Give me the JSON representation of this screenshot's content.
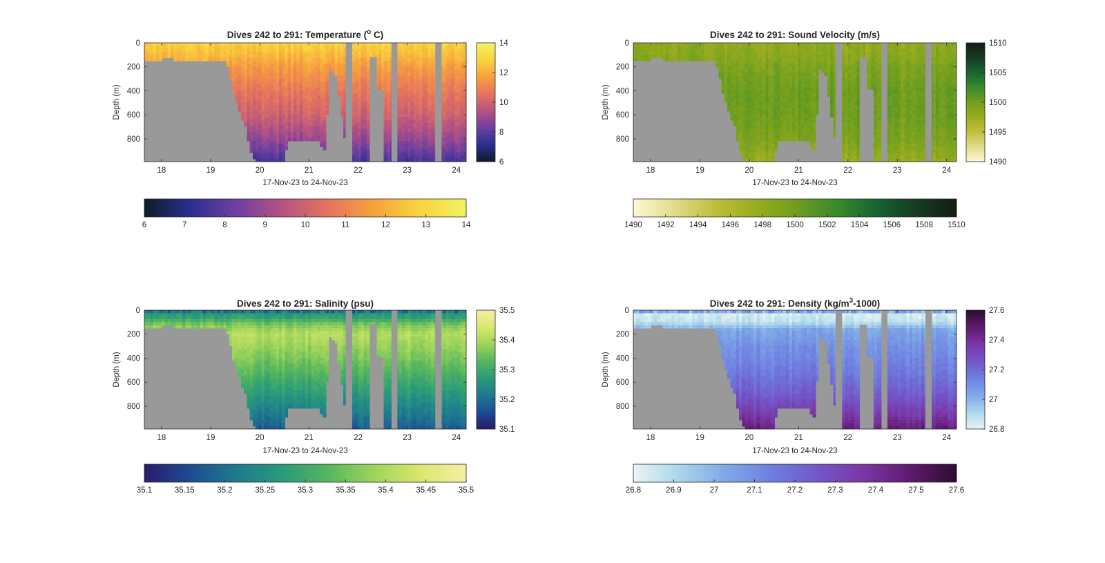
{
  "figure": {
    "background": "#ffffff",
    "land_color": "#999999",
    "panel_order": [
      "temperature",
      "sound_velocity",
      "salinity",
      "density"
    ]
  },
  "chart_data": [
    {
      "id": "temperature",
      "type": "heatmap",
      "title": "Dives 242 to 291: Temperature (",
      "title_super": "o",
      "title_suffix": " C)",
      "xlabel": "17-Nov-23 to 24-Nov-23",
      "ylabel": "Depth (m)",
      "xlim": [
        17.65,
        24.2
      ],
      "x_ticks": [
        18,
        19,
        20,
        21,
        22,
        23,
        24
      ],
      "x_tick_labels": [
        "18",
        "19",
        "20",
        "21",
        "22",
        "23",
        "24"
      ],
      "ylim": [
        0,
        990
      ],
      "y_reversed": true,
      "y_ticks": [
        0,
        200,
        400,
        600,
        800
      ],
      "y_tick_labels": [
        "0",
        "200",
        "400",
        "600",
        "800"
      ],
      "clim": [
        6,
        14
      ],
      "colormap": [
        "#0c1b2a",
        "#2a2f8f",
        "#6f3fa0",
        "#b55383",
        "#e6735e",
        "#f7a23d",
        "#f9d43f",
        "#f3f264"
      ],
      "colorbar_ticks": [
        6,
        8,
        10,
        12,
        14
      ],
      "colorbar_tick_labels": [
        "6",
        "8",
        "10",
        "12",
        "14"
      ],
      "hbar_ticks": [
        6,
        7,
        8,
        9,
        10,
        11,
        12,
        13,
        14
      ],
      "hbar_tick_labels": [
        "6",
        "7",
        "8",
        "9",
        "10",
        "11",
        "12",
        "13",
        "14"
      ],
      "profile": {
        "depth": [
          0,
          100,
          200,
          400,
          600,
          800,
          990
        ],
        "values": [
          12.8,
          12.3,
          11.6,
          10.7,
          10.0,
          8.9,
          7.6
        ]
      },
      "top_noise": 0
    },
    {
      "id": "sound_velocity",
      "type": "heatmap",
      "title": "Dives 242 to 291: Sound Velocity (m/s)",
      "title_super": "",
      "title_suffix": "",
      "xlabel": "17-Nov-23 to 24-Nov-23",
      "ylabel": "Depth (m)",
      "xlim": [
        17.65,
        24.2
      ],
      "x_ticks": [
        18,
        19,
        20,
        21,
        22,
        23,
        24
      ],
      "x_tick_labels": [
        "18",
        "19",
        "20",
        "21",
        "22",
        "23",
        "24"
      ],
      "ylim": [
        0,
        990
      ],
      "y_reversed": true,
      "y_ticks": [
        0,
        200,
        400,
        600,
        800
      ],
      "y_tick_labels": [
        "0",
        "200",
        "400",
        "600",
        "800"
      ],
      "clim": [
        1490,
        1510
      ],
      "colormap": [
        "#fdf8d4",
        "#e2dc8c",
        "#bfbf3c",
        "#9aad20",
        "#6f9e1e",
        "#3c8a2c",
        "#17652f",
        "#143c22",
        "#131d14"
      ],
      "colorbar_ticks": [
        1490,
        1495,
        1500,
        1505,
        1510
      ],
      "colorbar_tick_labels": [
        "1490",
        "1495",
        "1500",
        "1505",
        "1510"
      ],
      "hbar_ticks": [
        1490,
        1492,
        1494,
        1496,
        1498,
        1500,
        1502,
        1504,
        1506,
        1508,
        1510
      ],
      "hbar_tick_labels": [
        "1490",
        "1492",
        "1494",
        "1496",
        "1498",
        "1500",
        "1502",
        "1504",
        "1506",
        "1508",
        "1510"
      ],
      "profile": {
        "depth": [
          0,
          100,
          200,
          400,
          600,
          800,
          990
        ],
        "values": [
          1498.2,
          1498.4,
          1499.3,
          1500.2,
          1500.1,
          1499.4,
          1497.8
        ]
      },
      "top_noise": 0
    },
    {
      "id": "salinity",
      "type": "heatmap",
      "title": "Dives 242 to 291: Salinity (psu)",
      "title_super": "",
      "title_suffix": "",
      "xlabel": "17-Nov-23 to 24-Nov-23",
      "ylabel": "Depth (m)",
      "xlim": [
        17.65,
        24.2
      ],
      "x_ticks": [
        18,
        19,
        20,
        21,
        22,
        23,
        24
      ],
      "x_tick_labels": [
        "18",
        "19",
        "20",
        "21",
        "22",
        "23",
        "24"
      ],
      "ylim": [
        0,
        990
      ],
      "y_reversed": true,
      "y_ticks": [
        0,
        200,
        400,
        600,
        800
      ],
      "y_tick_labels": [
        "0",
        "200",
        "400",
        "600",
        "800"
      ],
      "clim": [
        35.1,
        35.5
      ],
      "colormap": [
        "#2a1a6b",
        "#1c4c92",
        "#1e7a8f",
        "#2a9a7a",
        "#55b65e",
        "#9ed45a",
        "#d9e76e",
        "#f6efa4"
      ],
      "colorbar_ticks": [
        35.1,
        35.2,
        35.3,
        35.4,
        35.5
      ],
      "colorbar_tick_labels": [
        "35.1",
        "35.2",
        "35.3",
        "35.4",
        "35.5"
      ],
      "hbar_ticks": [
        35.1,
        35.15,
        35.2,
        35.25,
        35.3,
        35.35,
        35.4,
        35.45,
        35.5
      ],
      "hbar_tick_labels": [
        "35.1",
        "35.15",
        "35.2",
        "35.25",
        "35.3",
        "35.35",
        "35.4",
        "35.45",
        "35.5"
      ],
      "profile": {
        "depth": [
          0,
          60,
          120,
          200,
          400,
          600,
          800,
          990
        ],
        "values": [
          35.26,
          35.28,
          35.36,
          35.41,
          35.36,
          35.3,
          35.24,
          35.18
        ]
      },
      "top_noise": 1
    },
    {
      "id": "density",
      "type": "heatmap",
      "title": "Dives 242 to 291: Density (kg/m",
      "title_super": "3",
      "title_suffix": "-1000)",
      "xlabel": "17-Nov-23 to 24-Nov-23",
      "ylabel": "Depth (m)",
      "xlim": [
        17.65,
        24.2
      ],
      "x_ticks": [
        18,
        19,
        20,
        21,
        22,
        23,
        24
      ],
      "x_tick_labels": [
        "18",
        "19",
        "20",
        "21",
        "22",
        "23",
        "24"
      ],
      "ylim": [
        0,
        990
      ],
      "y_reversed": true,
      "y_ticks": [
        0,
        200,
        400,
        600,
        800
      ],
      "y_tick_labels": [
        "0",
        "200",
        "400",
        "600",
        "800"
      ],
      "clim": [
        26.8,
        27.6
      ],
      "colormap": [
        "#e9f4f5",
        "#aad6ea",
        "#7ea8e8",
        "#6e7fe0",
        "#7356c8",
        "#7a36a5",
        "#5e1a6f",
        "#2e0c30"
      ],
      "colorbar_ticks": [
        26.8,
        27,
        27.2,
        27.4,
        27.6
      ],
      "colorbar_tick_labels": [
        "26.8",
        "27",
        "27.2",
        "27.4",
        "27.6"
      ],
      "hbar_ticks": [
        26.8,
        26.9,
        27.0,
        27.1,
        27.2,
        27.3,
        27.4,
        27.5,
        27.6
      ],
      "hbar_tick_labels": [
        "26.8",
        "26.9",
        "27",
        "27.1",
        "27.2",
        "27.3",
        "27.4",
        "27.5",
        "27.6"
      ],
      "profile": {
        "depth": [
          0,
          100,
          160,
          300,
          500,
          700,
          850,
          990
        ],
        "values": [
          26.82,
          26.87,
          27.03,
          27.09,
          27.15,
          27.24,
          27.34,
          27.46
        ]
      },
      "top_noise": 1
    }
  ],
  "masks": {
    "bottom_depth": {
      "x": [
        17.65,
        17.9,
        18.0,
        19.0,
        19.3,
        19.35,
        19.45,
        19.55,
        19.6,
        19.7,
        19.8,
        19.9,
        20.1,
        20.52,
        20.55,
        21.2,
        21.22,
        21.35,
        21.4,
        21.55,
        21.8
      ],
      "depth": [
        150,
        145,
        135,
        140,
        160,
        200,
        390,
        540,
        590,
        690,
        880,
        990,
        990,
        990,
        810,
        810,
        870,
        900,
        200,
        260,
        990
      ]
    },
    "gaps": [
      [
        21.75,
        21.88
      ],
      [
        22.24,
        22.38
      ],
      [
        22.38,
        22.52
      ],
      [
        22.68,
        22.8
      ],
      [
        23.57,
        23.7
      ]
    ],
    "gap_tops": [
      0,
      120,
      390,
      0,
      0
    ]
  }
}
